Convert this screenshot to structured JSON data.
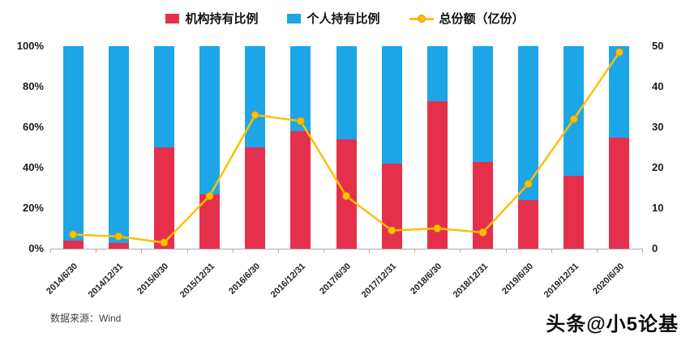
{
  "legend": {
    "items": [
      {
        "label": "机构持有比例",
        "color": "#e5304c",
        "type": "square"
      },
      {
        "label": "个人持有比例",
        "color": "#1ca6e8",
        "type": "square"
      },
      {
        "label": "总份额（亿份）",
        "color": "#ffc000",
        "type": "line"
      }
    ]
  },
  "source_note": "数据来源：Wind",
  "watermark": "头条@小5论基",
  "chart_data": {
    "type": "bar",
    "subtype": "stacked-bar-with-line",
    "categories": [
      "2014/6/30",
      "2014/12/31",
      "2015/6/30",
      "2015/12/31",
      "2016/6/30",
      "2016/12/31",
      "2017/6/30",
      "2017/12/31",
      "2018/6/30",
      "2018/12/31",
      "2019/6/30",
      "2019/12/31",
      "2020/6/30"
    ],
    "series": [
      {
        "name": "机构持有比例",
        "type": "bar",
        "axis": "left",
        "unit": "%",
        "color": "#e5304c",
        "values": [
          4,
          3,
          50,
          27,
          50,
          58,
          54,
          42,
          73,
          43,
          24,
          36,
          55
        ]
      },
      {
        "name": "个人持有比例",
        "type": "bar",
        "axis": "left",
        "unit": "%",
        "color": "#1ca6e8",
        "values": [
          96,
          97,
          50,
          73,
          50,
          42,
          46,
          58,
          27,
          57,
          76,
          64,
          45
        ]
      },
      {
        "name": "总份额（亿份）",
        "type": "line",
        "axis": "right",
        "unit": "亿份",
        "color": "#ffc000",
        "values": [
          3.5,
          3,
          1.5,
          13,
          33,
          31.5,
          13,
          4.5,
          5,
          4,
          16,
          32,
          48.5
        ]
      }
    ],
    "left_axis": {
      "min": 0,
      "max": 100,
      "ticks": [
        0,
        20,
        40,
        60,
        80,
        100
      ],
      "tick_labels": [
        "0%",
        "20%",
        "40%",
        "60%",
        "80%",
        "100%"
      ]
    },
    "right_axis": {
      "min": 0,
      "max": 50,
      "ticks": [
        0,
        10,
        20,
        30,
        40,
        50
      ],
      "tick_labels": [
        "0",
        "10",
        "20",
        "30",
        "40",
        "50"
      ]
    },
    "grid": false,
    "legend_position": "top",
    "title": ""
  }
}
